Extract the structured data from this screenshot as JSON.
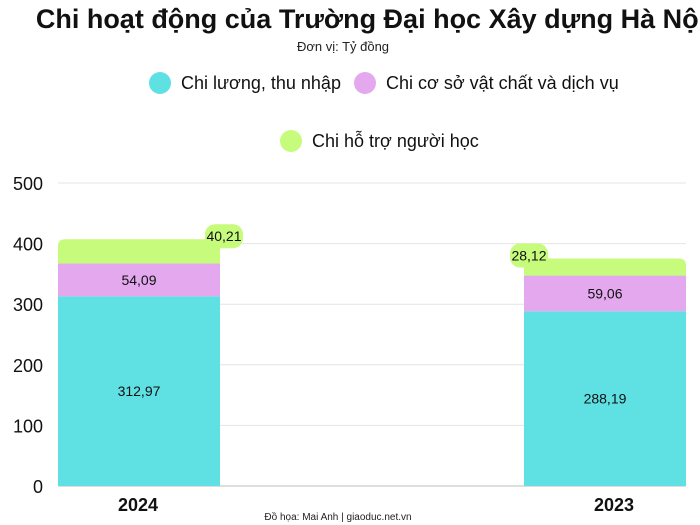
{
  "chart_data": {
    "type": "bar",
    "stacked": true,
    "title": "Chi hoạt động của Trường Đại học Xây dựng Hà Nội",
    "subtitle": "Đơn vị: Tỷ đồng",
    "categories": [
      "2024",
      "2023"
    ],
    "series": [
      {
        "name": "Chi lương, thu nhập",
        "color": "#5fe1e3",
        "values": [
          312.97,
          288.19
        ],
        "labels": [
          "312,97",
          "288,19"
        ]
      },
      {
        "name": "Chi cơ sở vật chất và dịch vụ",
        "color": "#e4a8ef",
        "values": [
          54.09,
          59.06
        ],
        "labels": [
          "54,09",
          "59,06"
        ]
      },
      {
        "name": "Chi hỗ trợ người học",
        "color": "#c6fb7b",
        "values": [
          40.21,
          28.12
        ],
        "labels": [
          "40,21",
          "28,12"
        ]
      }
    ],
    "ylim": [
      0,
      500
    ],
    "yticks": [
      0,
      100,
      200,
      300,
      400,
      500
    ],
    "grid": true,
    "legend_position": "top",
    "credit": "Đồ họa: Mai Anh | giaoduc.net.vn"
  }
}
